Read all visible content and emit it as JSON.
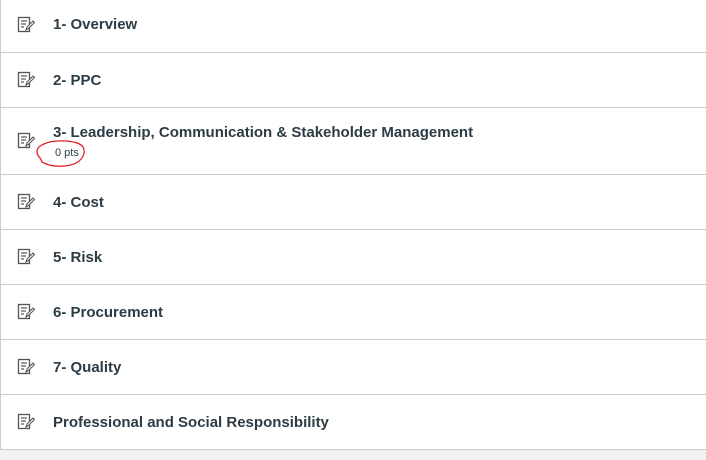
{
  "modules": [
    {
      "title": "1- Overview",
      "icon": "assignment-icon"
    },
    {
      "title": "2- PPC",
      "icon": "assignment-icon"
    },
    {
      "title": "3- Leadership, Communication & Stakeholder Management",
      "points": "0 pts",
      "icon": "assignment-icon"
    },
    {
      "title": "4- Cost",
      "icon": "assignment-icon"
    },
    {
      "title": "5- Risk",
      "icon": "assignment-icon"
    },
    {
      "title": "6- Procurement",
      "icon": "assignment-icon"
    },
    {
      "title": "7- Quality",
      "icon": "assignment-icon"
    },
    {
      "title": "Professional and Social Responsibility",
      "icon": "assignment-icon"
    }
  ],
  "colors": {
    "text": "#2d3b45",
    "border": "#c7cdd1",
    "annotation": "#e0202a"
  }
}
